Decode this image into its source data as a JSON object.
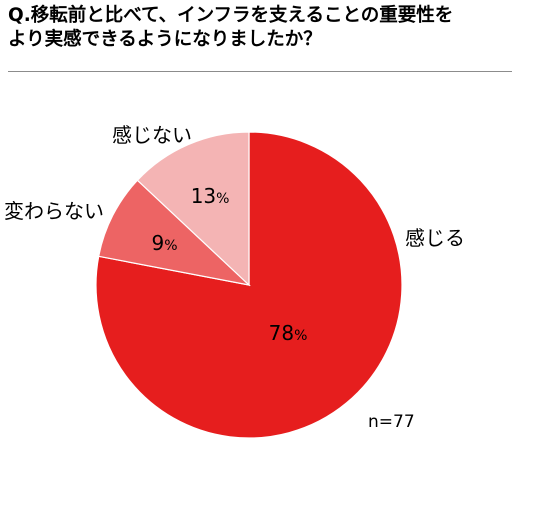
{
  "title": {
    "line1": "Q.移転前と比べて、インフラを支えることの重要性を",
    "line2": "より実感できるようになりましたか？"
  },
  "chart_data": {
    "type": "pie",
    "title": "Q.移転前と比べて、インフラを支えることの重要性をより実感できるようになりましたか？",
    "slices": [
      {
        "label": "感じる",
        "value": 78,
        "color": "#e61e1e"
      },
      {
        "label": "変わらない",
        "value": 9,
        "color": "#ed6464"
      },
      {
        "label": "感じない",
        "value": 13,
        "color": "#f4b4b4"
      }
    ],
    "value_suffix": "%",
    "start": "12 o'clock",
    "direction": "clockwise",
    "note": "n=77"
  }
}
